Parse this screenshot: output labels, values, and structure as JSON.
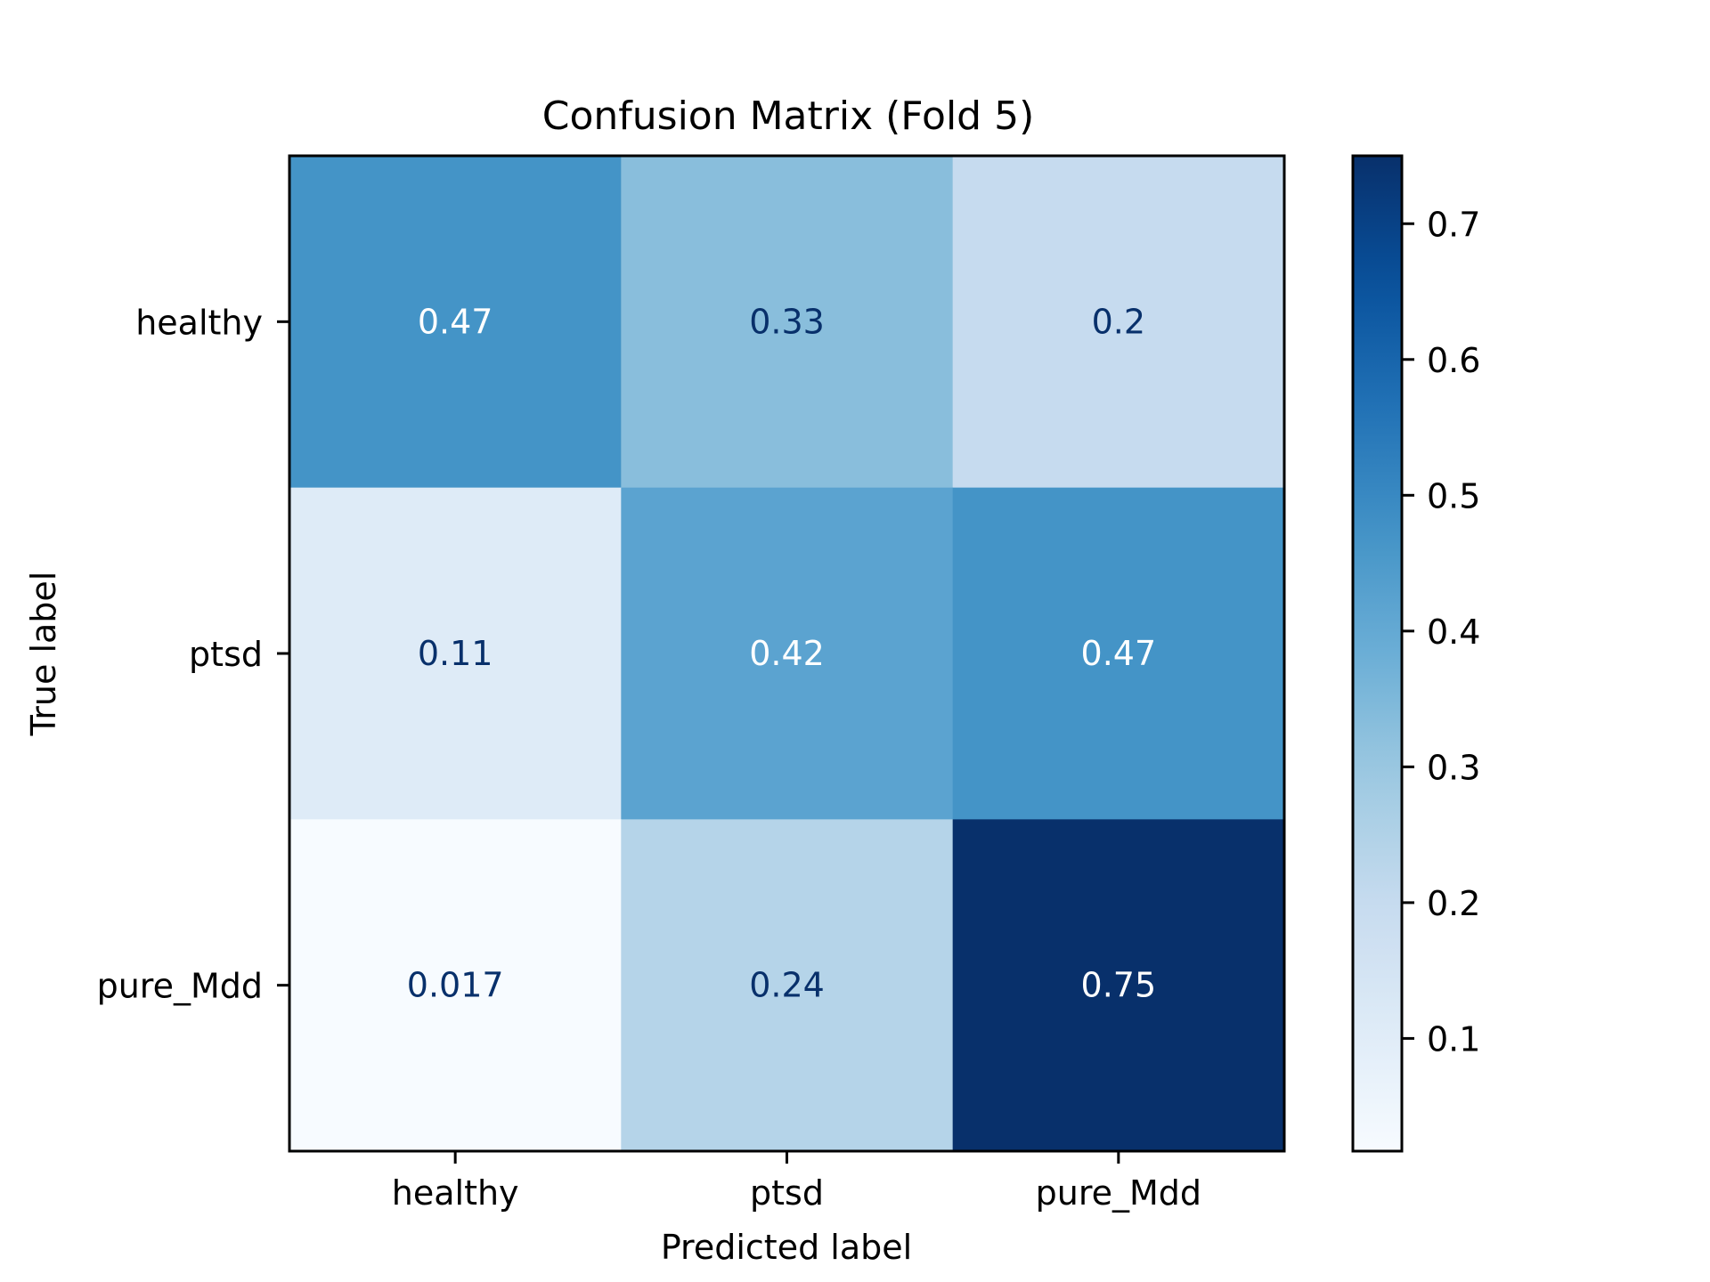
{
  "chart_data": {
    "type": "heatmap",
    "title": "Confusion Matrix (Fold 5)",
    "xlabel": "Predicted label",
    "ylabel": "True label",
    "x_categories": [
      "healthy",
      "ptsd",
      "pure_Mdd"
    ],
    "y_categories": [
      "healthy",
      "ptsd",
      "pure_Mdd"
    ],
    "values": [
      [
        0.47,
        0.33,
        0.2
      ],
      [
        0.11,
        0.42,
        0.47
      ],
      [
        0.017,
        0.24,
        0.75
      ]
    ],
    "value_labels": [
      [
        "0.47",
        "0.33",
        "0.2"
      ],
      [
        "0.11",
        "0.42",
        "0.47"
      ],
      [
        "0.017",
        "0.24",
        "0.75"
      ]
    ],
    "colormap": "Blues",
    "color_range": [
      0.017,
      0.75
    ],
    "colorbar_ticks": [
      0.1,
      0.2,
      0.3,
      0.4,
      0.5,
      0.6,
      0.7
    ],
    "colorbar_tick_labels": [
      "0.1",
      "0.2",
      "0.3",
      "0.4",
      "0.5",
      "0.6",
      "0.7"
    ],
    "text_colors": {
      "light": "#ffffff",
      "dark": "#08306b"
    },
    "grid": false,
    "legend": "colorbar-right"
  }
}
